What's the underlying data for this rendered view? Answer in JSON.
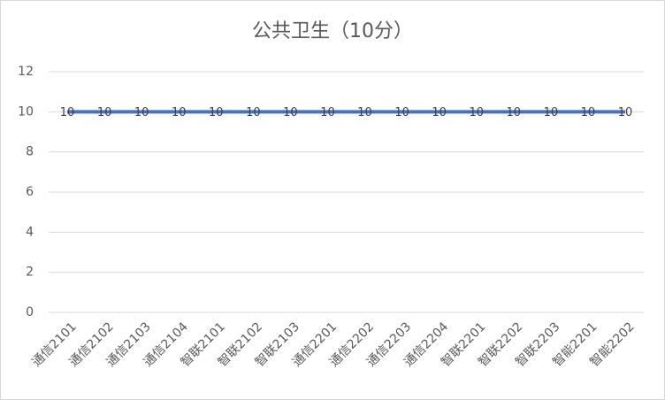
{
  "chart_data": {
    "type": "line",
    "title": "公共卫生（10分）",
    "categories": [
      "通信2101",
      "通信2102",
      "通信2103",
      "通信2104",
      "智联2101",
      "智联2102",
      "智联2103",
      "通信2201",
      "通信2202",
      "通信2203",
      "通信2204",
      "智联2201",
      "智联2202",
      "智联2203",
      "智能2201",
      "智能2202"
    ],
    "series": [
      {
        "name": "公共卫生",
        "color": "#4472c4",
        "values": [
          10,
          10,
          10,
          10,
          10,
          10,
          10,
          10,
          10,
          10,
          10,
          10,
          10,
          10,
          10,
          10
        ]
      }
    ],
    "ylim": [
      0,
      12
    ],
    "yticks": [
      0,
      2,
      4,
      6,
      8,
      10,
      12
    ],
    "grid": true,
    "data_labels": true
  }
}
